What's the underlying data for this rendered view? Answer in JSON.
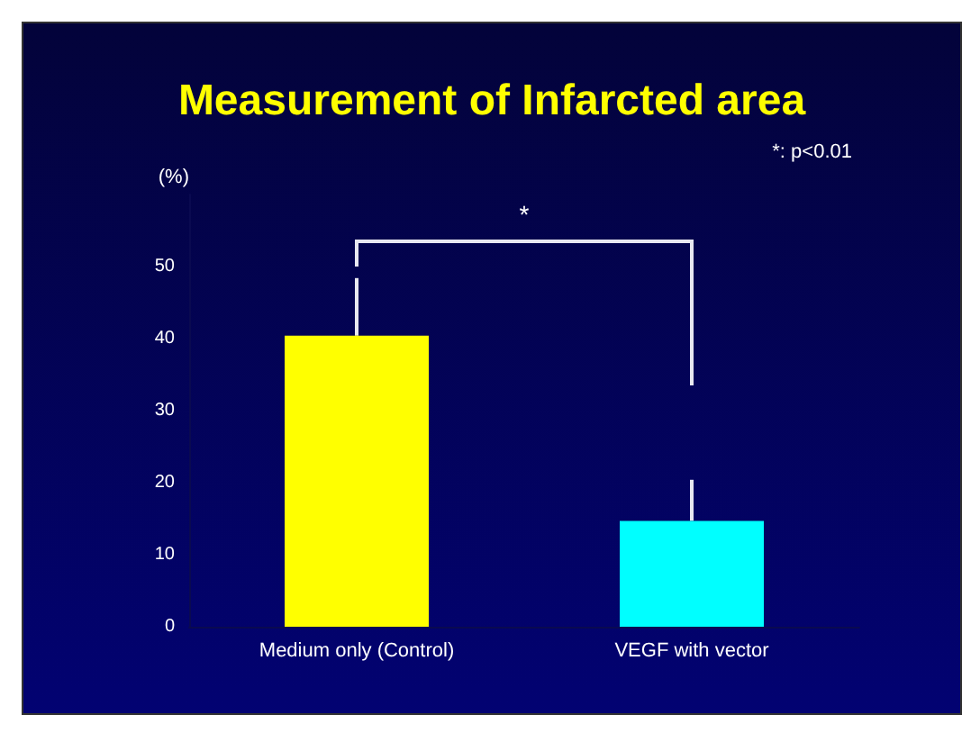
{
  "chart_data": {
    "type": "bar",
    "title": "Measurement of Infarcted area",
    "ylabel": "(%)",
    "categories": [
      "Medium only (Control)",
      "VEGF with vector"
    ],
    "values": [
      40.4,
      14.7
    ],
    "colors": [
      "#ffff00",
      "#00ffff"
    ],
    "errors": [
      [
        40.4,
        48.4
      ],
      [
        14.7,
        20.4
      ]
    ],
    "ylim": [
      0,
      60
    ],
    "yticks": [
      0,
      10,
      20,
      30,
      40,
      50
    ],
    "grid": false,
    "annotations": [
      "*: p<0.01",
      "*"
    ]
  }
}
